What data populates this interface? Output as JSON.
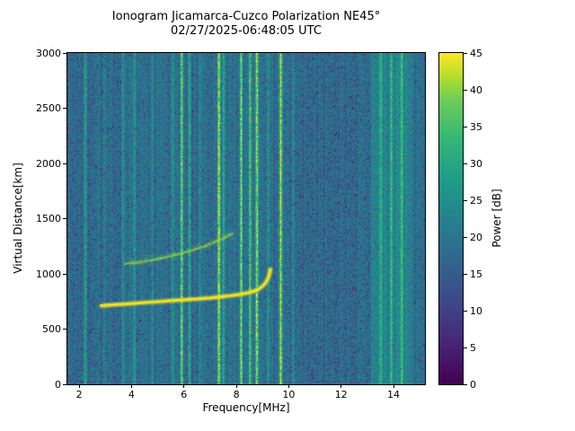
{
  "chart_data": {
    "type": "heatmap",
    "title": "Ionogram Jicamarca-Cuzco Polarization NE45°",
    "subtitle": "02/27/2025-06:48:05 UTC",
    "xlabel": "Frequency[MHz]",
    "ylabel": "Virtual Distance[km]",
    "xlim": [
      1.55,
      15.2
    ],
    "ylim": [
      0,
      3000
    ],
    "xticks": [
      2,
      4,
      6,
      8,
      10,
      12,
      14
    ],
    "yticks": [
      0,
      500,
      1000,
      1500,
      2000,
      2500,
      3000
    ],
    "grid": false,
    "colorbar": {
      "label": "Power [dB]",
      "min": 0,
      "max": 45,
      "ticks": [
        0,
        5,
        10,
        15,
        20,
        25,
        30,
        35,
        40,
        45
      ]
    },
    "colormap": "viridis",
    "colormap_stops": [
      [
        0.0,
        "#440154"
      ],
      [
        0.13,
        "#482878"
      ],
      [
        0.25,
        "#3e4989"
      ],
      [
        0.38,
        "#31688e"
      ],
      [
        0.5,
        "#26828e"
      ],
      [
        0.62,
        "#1f9e89"
      ],
      [
        0.74,
        "#35b779"
      ],
      [
        0.86,
        "#6ece58"
      ],
      [
        0.93,
        "#b5de2b"
      ],
      [
        1.0,
        "#fde725"
      ]
    ],
    "noise": {
      "mean_db": 18.3,
      "spread_db": 7,
      "column_variation_db": 2.5,
      "dark_speckle_prob": 0.05
    },
    "dark_regions": [
      {
        "freq_start": 9.85,
        "freq_end": 13.1,
        "dark_prob": 0.1
      },
      {
        "freq_start": 1.55,
        "freq_end": 3.6,
        "dark_prob": 0.085
      }
    ],
    "rfi_bands": [
      {
        "freq_start": 13.15,
        "freq_end": 14.75,
        "boost_db": 4.5
      }
    ],
    "rfi_lines": [
      {
        "freq": 2.22,
        "power": 29
      },
      {
        "freq": 2.95,
        "power": 25
      },
      {
        "freq": 3.65,
        "power": 24.5
      },
      {
        "freq": 4.1,
        "power": 26
      },
      {
        "freq": 4.75,
        "power": 24.5
      },
      {
        "freq": 5.55,
        "power": 25
      },
      {
        "freq": 5.9,
        "power": 39
      },
      {
        "freq": 6.2,
        "power": 33
      },
      {
        "freq": 6.6,
        "power": 25
      },
      {
        "freq": 7.32,
        "power": 45
      },
      {
        "freq": 7.5,
        "power": 30
      },
      {
        "freq": 8.17,
        "power": 41
      },
      {
        "freq": 8.5,
        "power": 37
      },
      {
        "freq": 8.77,
        "power": 43
      },
      {
        "freq": 9.2,
        "power": 27
      },
      {
        "freq": 9.68,
        "power": 44
      },
      {
        "freq": 10.15,
        "power": 26
      },
      {
        "freq": 13.5,
        "power": 28
      },
      {
        "freq": 13.9,
        "power": 29
      },
      {
        "freq": 14.3,
        "power": 28
      }
    ],
    "echo_trace_first_hop": {
      "power_db": 45,
      "points": [
        [
          2.85,
          712
        ],
        [
          3.2,
          718
        ],
        [
          3.6,
          724
        ],
        [
          4.0,
          731
        ],
        [
          4.5,
          740
        ],
        [
          5.0,
          748
        ],
        [
          5.5,
          757
        ],
        [
          6.0,
          765
        ],
        [
          6.5,
          773
        ],
        [
          7.0,
          782
        ],
        [
          7.4,
          792
        ],
        [
          7.8,
          803
        ],
        [
          8.1,
          813
        ],
        [
          8.4,
          826
        ],
        [
          8.65,
          842
        ],
        [
          8.85,
          862
        ],
        [
          9.0,
          888
        ],
        [
          9.12,
          920
        ],
        [
          9.2,
          955
        ],
        [
          9.26,
          995
        ],
        [
          9.3,
          1040
        ]
      ]
    },
    "echo_trace_second_hop": {
      "power_db": 32,
      "points": [
        [
          3.75,
          1090
        ],
        [
          4.2,
          1103
        ],
        [
          4.7,
          1122
        ],
        [
          5.2,
          1145
        ],
        [
          5.7,
          1172
        ],
        [
          6.2,
          1205
        ],
        [
          6.7,
          1243
        ],
        [
          7.1,
          1280
        ],
        [
          7.5,
          1322
        ],
        [
          7.85,
          1365
        ]
      ]
    }
  }
}
